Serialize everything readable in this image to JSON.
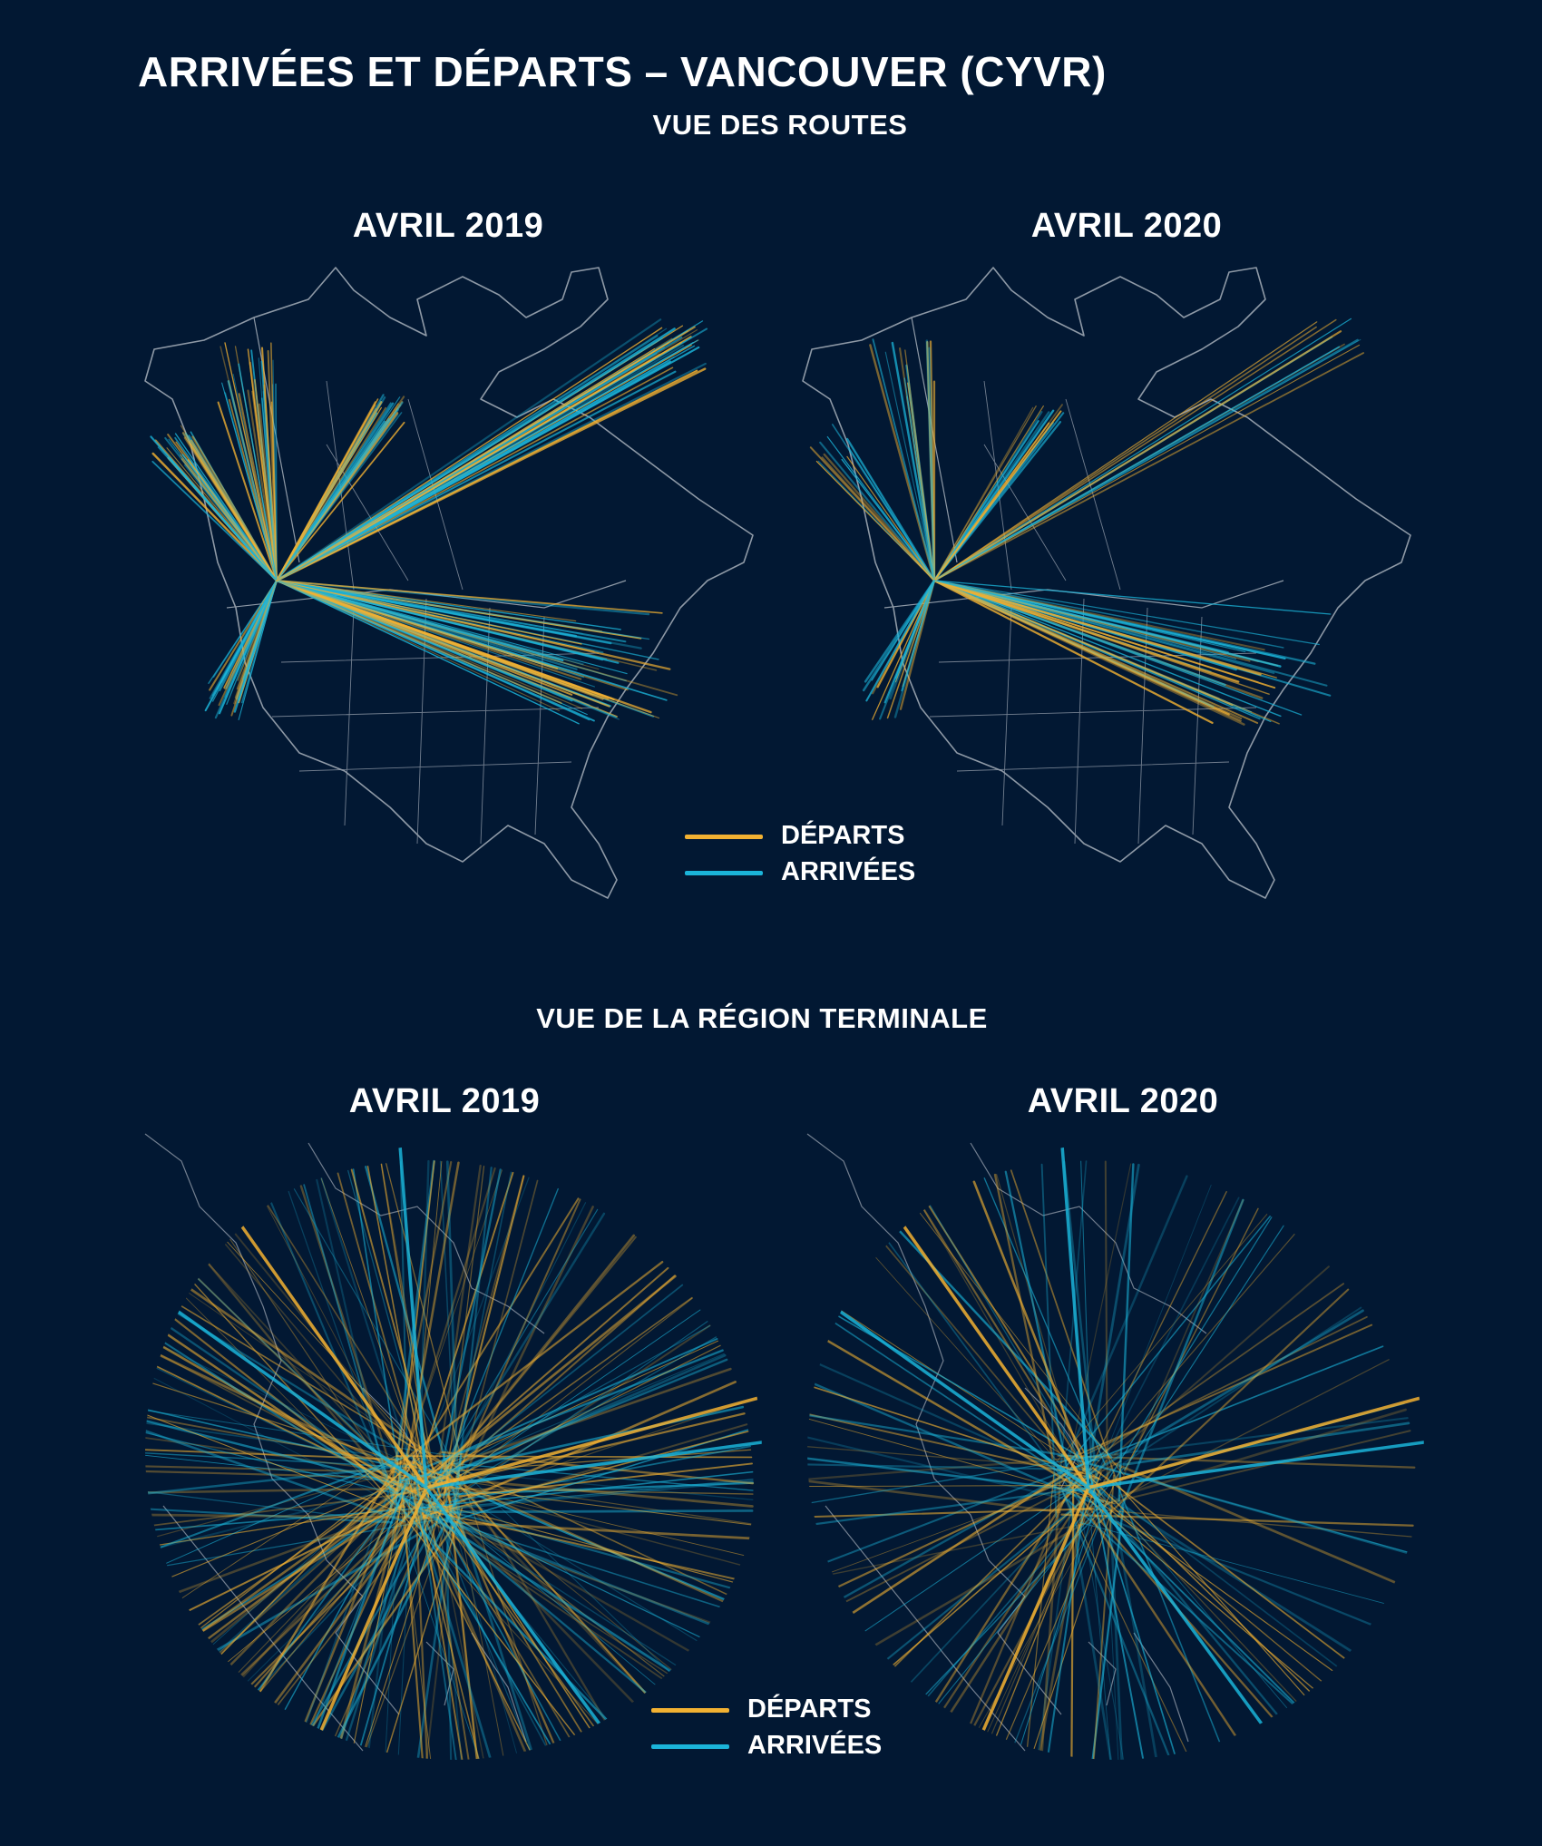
{
  "title": "ARRIVÉES ET DÉPARTS – VANCOUVER (CYVR)",
  "sections": {
    "routes": {
      "subtitle": "VUE DES ROUTES",
      "panels": [
        {
          "label": "AVRIL 2019"
        },
        {
          "label": "AVRIL 2020"
        }
      ]
    },
    "terminal": {
      "subtitle": "VUE DE LA RÉGION TERMINALE",
      "panels": [
        {
          "label": "AVRIL 2019"
        },
        {
          "label": "AVRIL 2020"
        }
      ]
    }
  },
  "legend": {
    "departures": {
      "label": "DÉPARTS",
      "color": "#f2b132"
    },
    "arrivals": {
      "label": "ARRIVÉES",
      "color": "#1bb4d9"
    }
  },
  "colors": {
    "background": "#021833",
    "outline": "#8e99a6"
  }
}
